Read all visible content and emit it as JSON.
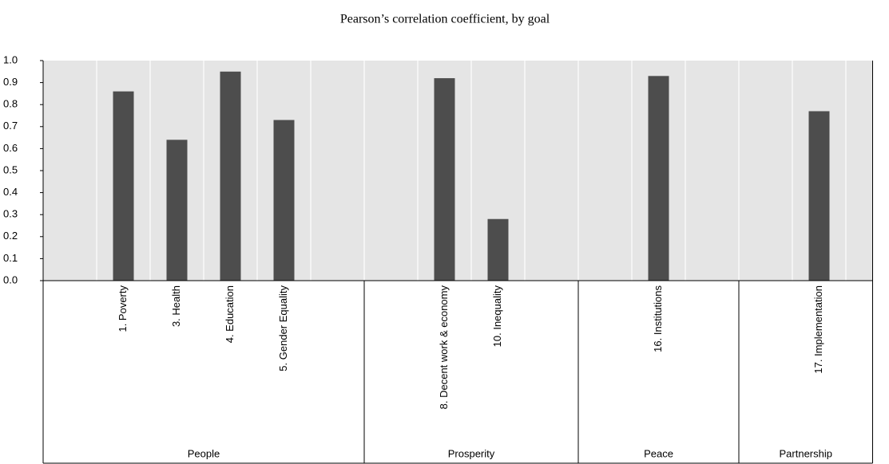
{
  "chart_data": {
    "type": "bar",
    "title": "Pearson’s correlation coefficient, by goal",
    "color": "#4d4d4d",
    "groups": [
      {
        "name": "People",
        "categories": [
          null,
          "1. Poverty",
          "3. Health",
          "4. Education",
          "5. Gender Equality",
          null
        ],
        "values": [
          null,
          0.86,
          0.64,
          0.95,
          0.73,
          null
        ]
      },
      {
        "name": "Prosperity",
        "categories": [
          null,
          "8. Decent work & economy",
          "10. Inequality",
          null
        ],
        "values": [
          null,
          0.92,
          0.28,
          null
        ]
      },
      {
        "name": "Peace",
        "categories": [
          null,
          "16. Institutions",
          null
        ],
        "values": [
          null,
          0.93,
          null
        ]
      },
      {
        "name": "Partnership",
        "categories": [
          null,
          "17. Implementation",
          null
        ],
        "values": [
          null,
          0.77,
          null
        ]
      }
    ],
    "ylim": [
      0,
      1
    ],
    "yticks": [
      {
        "value": 0,
        "label": "0.0"
      },
      0.1,
      0.2,
      0.3,
      0.4,
      0.5,
      0.6,
      0.7,
      0.8,
      0.9,
      {
        "value": 1,
        "label": "1.0"
      }
    ],
    "grid": true
  }
}
